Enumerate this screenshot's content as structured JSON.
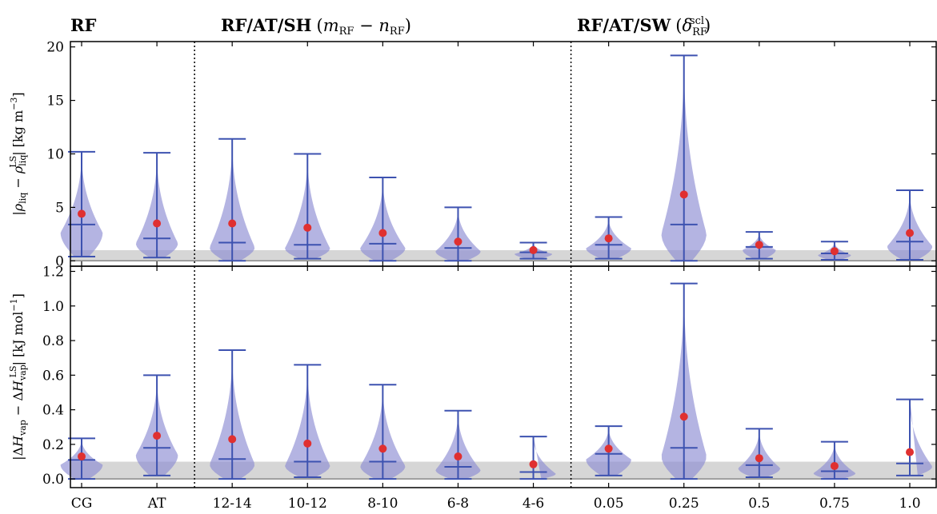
{
  "groups": [
    {
      "label": "RF"
    },
    {
      "label": "RF/AT/SH",
      "suffix_pre": "(",
      "suffix_it": "m",
      "suffix_sub1": "RF",
      "suffix_mid": " − ",
      "suffix_it2": "n",
      "suffix_sub2": "RF",
      "suffix_post": ")"
    },
    {
      "label": "RF/AT/SW",
      "suffix_pre": "(",
      "suffix_it": "δ",
      "suffix_sub1": "RF",
      "suffix_sup": "scl",
      "suffix_post": ")"
    }
  ],
  "categories": [
    "CG",
    "AT",
    "12-14",
    "10-12",
    "8-10",
    "6-8",
    "4-6",
    "0.05",
    "0.25",
    "0.5",
    "0.75",
    "1.0"
  ],
  "colors": {
    "violin_fill": "#8c8cd2",
    "whisker": "#3d52b0",
    "mean_point": "#e03030",
    "reference_band": "#d6d6d6",
    "zero_line": "#888888"
  },
  "chart_data": [
    {
      "type": "violin",
      "ylabel_parts": {
        "pre": "|",
        "it": "ρ",
        "sub": "liq",
        "mid": " − ",
        "it2": "ρ",
        "sub2": "liq",
        "sup2": "LS",
        "post": "| [kg m",
        "sup3": "−3",
        "end": "]"
      },
      "ylim": [
        -0.5,
        20.5
      ],
      "yticks": [
        0,
        5,
        10,
        15,
        20
      ],
      "ytick_labels": [
        "0",
        "5",
        "10",
        "15",
        "20"
      ],
      "reference_band": [
        0,
        1
      ],
      "series": [
        {
          "min": 0.4,
          "median": 3.4,
          "max": 10.2,
          "mean": 4.4,
          "max_width": 0.28
        },
        {
          "min": 0.3,
          "median": 2.1,
          "max": 10.1,
          "mean": 3.5,
          "max_width": 0.28
        },
        {
          "min": 0.0,
          "median": 1.7,
          "max": 11.4,
          "mean": 3.5,
          "max_width": 0.3
        },
        {
          "min": 0.2,
          "median": 1.5,
          "max": 10.0,
          "mean": 3.1,
          "max_width": 0.3
        },
        {
          "min": 0.0,
          "median": 1.6,
          "max": 7.8,
          "mean": 2.6,
          "max_width": 0.3
        },
        {
          "min": 0.0,
          "median": 1.2,
          "max": 5.0,
          "mean": 1.8,
          "max_width": 0.3
        },
        {
          "min": 0.2,
          "median": 0.8,
          "max": 1.7,
          "mean": 1.0,
          "max_width": 0.25
        },
        {
          "min": 0.2,
          "median": 1.5,
          "max": 4.1,
          "mean": 2.1,
          "max_width": 0.3
        },
        {
          "min": 0.0,
          "median": 3.4,
          "max": 19.2,
          "mean": 6.2,
          "max_width": 0.3
        },
        {
          "min": 0.2,
          "median": 1.3,
          "max": 2.7,
          "mean": 1.5,
          "max_width": 0.22
        },
        {
          "min": 0.1,
          "median": 0.7,
          "max": 1.8,
          "mean": 0.9,
          "max_width": 0.22
        },
        {
          "min": 0.1,
          "median": 1.8,
          "max": 6.6,
          "mean": 2.6,
          "max_width": 0.3
        }
      ]
    },
    {
      "type": "violin",
      "ylabel_parts": {
        "pre": "|Δ",
        "it": "H",
        "sub": "vap",
        "mid": " − Δ",
        "it2": "H",
        "sub2": "vap",
        "sup2": "LS",
        "post": "| [kJ mol",
        "sup3": "−1",
        "end": "]"
      },
      "ylim": [
        -0.05,
        1.23
      ],
      "yticks": [
        0.0,
        0.2,
        0.4,
        0.6,
        0.8,
        1.0,
        1.2
      ],
      "ytick_labels": [
        "0.0",
        "0.2",
        "0.4",
        "0.6",
        "0.8",
        "1.0",
        "1.2"
      ],
      "reference_band": [
        0,
        0.1
      ],
      "series": [
        {
          "min": 0.0,
          "median": 0.11,
          "max": 0.235,
          "mean": 0.13,
          "max_width": 0.28
        },
        {
          "min": 0.02,
          "median": 0.18,
          "max": 0.6,
          "mean": 0.25,
          "max_width": 0.28
        },
        {
          "min": 0.0,
          "median": 0.115,
          "max": 0.745,
          "mean": 0.23,
          "max_width": 0.3
        },
        {
          "min": 0.01,
          "median": 0.1,
          "max": 0.66,
          "mean": 0.205,
          "max_width": 0.3
        },
        {
          "min": 0.0,
          "median": 0.1,
          "max": 0.545,
          "mean": 0.175,
          "max_width": 0.3
        },
        {
          "min": 0.0,
          "median": 0.07,
          "max": 0.395,
          "mean": 0.13,
          "max_width": 0.3
        },
        {
          "min": 0.0,
          "median": 0.04,
          "max": 0.245,
          "mean": 0.085,
          "max_width": 0.3
        },
        {
          "min": 0.02,
          "median": 0.145,
          "max": 0.305,
          "mean": 0.175,
          "max_width": 0.3
        },
        {
          "min": 0.0,
          "median": 0.18,
          "max": 1.13,
          "mean": 0.36,
          "max_width": 0.3
        },
        {
          "min": 0.01,
          "median": 0.08,
          "max": 0.29,
          "mean": 0.12,
          "max_width": 0.28
        },
        {
          "min": 0.0,
          "median": 0.045,
          "max": 0.215,
          "mean": 0.075,
          "max_width": 0.28
        },
        {
          "min": 0.02,
          "median": 0.09,
          "max": 0.46,
          "mean": 0.155,
          "max_width": 0.3
        }
      ]
    }
  ]
}
